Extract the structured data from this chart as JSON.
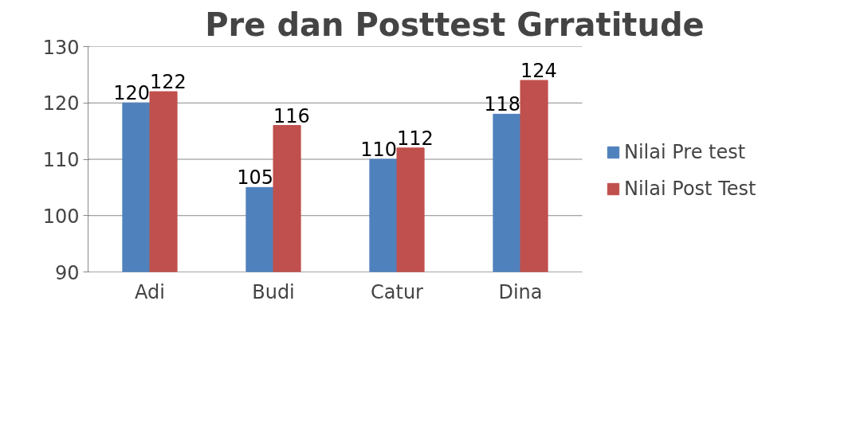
{
  "chart_data": {
    "type": "bar",
    "title": "Pre dan Posttest Grratitude",
    "categories": [
      "Adi",
      "Budi",
      "Catur",
      "Dina"
    ],
    "series": [
      {
        "name": "Nilai Pre test",
        "color": "#4f81bd",
        "values": [
          120,
          105,
          110,
          118
        ]
      },
      {
        "name": "Nilai Post Test",
        "color": "#c0504d",
        "values": [
          122,
          116,
          112,
          124
        ]
      }
    ],
    "ylim": [
      90,
      130
    ],
    "yticks": [
      90,
      100,
      110,
      120,
      130
    ],
    "grid": "y",
    "legend": "right",
    "data_labels": true
  }
}
